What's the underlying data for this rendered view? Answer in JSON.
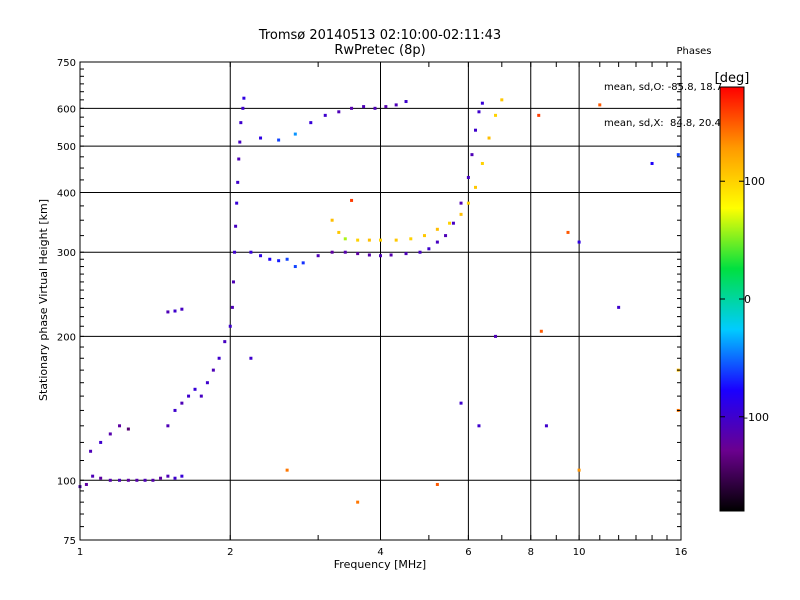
{
  "header": {
    "title_line1": "Tromsø 20140513 02:10:00-02:11:43",
    "title_line2": "RwPretec (8p)"
  },
  "phases": {
    "heading": "Phases",
    "line_o": "mean, sd,O: -85.8, 18.7",
    "line_x": "mean, sd,X:  84.8, 20.4"
  },
  "colorbar": {
    "unit": "[deg]",
    "range": [
      -180,
      180
    ],
    "tick_labels": [
      "100",
      "0",
      "-100"
    ],
    "tick_values": [
      100,
      0,
      -100
    ],
    "gradient": [
      "#000000",
      "#6b008f",
      "#1a00ff",
      "#00ccff",
      "#00e040",
      "#ffff00",
      "#ff9900",
      "#ff0000"
    ]
  },
  "chart_data": {
    "type": "scatter",
    "title": "Tromsø 20140513 02:10:00-02:11:43",
    "subtitle": "RwPretec (8p)",
    "xlabel": "Frequency [MHz]",
    "ylabel": "Stationary phase Virtual Height [km]",
    "xscale": "log",
    "yscale": "log",
    "xlim": [
      1,
      16
    ],
    "ylim": [
      75,
      750
    ],
    "x_ticks": [
      1,
      2,
      4,
      6,
      8,
      10,
      16
    ],
    "x_tick_labels": [
      "1",
      "2",
      "4",
      "6",
      "8",
      "10",
      "16"
    ],
    "y_ticks": [
      75,
      100,
      200,
      300,
      400,
      500,
      600,
      750
    ],
    "y_tick_labels": [
      "75",
      "100",
      "200",
      "300",
      "400",
      "500",
      "600",
      "750"
    ],
    "grid": true,
    "color_encoding": "phase_deg",
    "series": [
      {
        "points": [
          [
            1.0,
            97,
            -110
          ],
          [
            1.03,
            98,
            -120
          ],
          [
            1.06,
            102,
            -110
          ],
          [
            1.1,
            101,
            -120
          ],
          [
            1.15,
            100,
            -115
          ],
          [
            1.2,
            100,
            -110
          ],
          [
            1.25,
            100,
            -120
          ],
          [
            1.3,
            100,
            -115
          ],
          [
            1.35,
            100,
            -110
          ],
          [
            1.4,
            100,
            -115
          ],
          [
            1.45,
            101,
            -120
          ],
          [
            1.5,
            102,
            -110
          ],
          [
            1.55,
            101,
            -100
          ],
          [
            1.6,
            102,
            -95
          ],
          [
            1.05,
            115,
            -110
          ],
          [
            1.1,
            120,
            -100
          ],
          [
            1.15,
            125,
            -115
          ],
          [
            1.2,
            130,
            -120
          ],
          [
            1.25,
            128,
            -140
          ],
          [
            1.5,
            130,
            -110
          ],
          [
            1.55,
            140,
            -100
          ],
          [
            1.6,
            145,
            -110
          ],
          [
            1.65,
            150,
            -100
          ],
          [
            1.7,
            155,
            -95
          ],
          [
            1.75,
            150,
            -105
          ],
          [
            1.8,
            160,
            -100
          ],
          [
            1.85,
            170,
            -110
          ],
          [
            1.9,
            180,
            -100
          ],
          [
            1.95,
            195,
            -105
          ],
          [
            2.0,
            210,
            -100
          ],
          [
            2.02,
            230,
            -110
          ],
          [
            1.5,
            225,
            -110
          ],
          [
            1.55,
            226,
            -100
          ],
          [
            1.6,
            228,
            -105
          ],
          [
            2.03,
            260,
            -110
          ],
          [
            2.04,
            300,
            -100
          ],
          [
            2.05,
            340,
            -105
          ],
          [
            2.06,
            380,
            -95
          ],
          [
            2.07,
            420,
            -100
          ],
          [
            2.08,
            470,
            -110
          ],
          [
            2.09,
            510,
            -105
          ],
          [
            2.1,
            560,
            -100
          ],
          [
            2.12,
            600,
            -100
          ],
          [
            2.13,
            630,
            -90
          ],
          [
            2.2,
            300,
            -95
          ],
          [
            2.3,
            295,
            -90
          ],
          [
            2.4,
            290,
            -80
          ],
          [
            2.5,
            288,
            -70
          ],
          [
            2.6,
            290,
            -60
          ],
          [
            2.7,
            280,
            -60
          ],
          [
            2.8,
            285,
            -65
          ],
          [
            3.0,
            295,
            -110
          ],
          [
            3.2,
            300,
            -120
          ],
          [
            3.4,
            300,
            -115
          ],
          [
            3.6,
            298,
            -120
          ],
          [
            3.8,
            296,
            -115
          ],
          [
            4.0,
            295,
            -110
          ],
          [
            4.2,
            296,
            -115
          ],
          [
            4.5,
            298,
            -110
          ],
          [
            4.8,
            300,
            -105
          ],
          [
            5.0,
            305,
            -100
          ],
          [
            5.2,
            315,
            -105
          ],
          [
            5.4,
            325,
            -110
          ],
          [
            5.6,
            345,
            -105
          ],
          [
            5.8,
            380,
            -110
          ],
          [
            6.0,
            430,
            -105
          ],
          [
            6.1,
            480,
            -110
          ],
          [
            6.2,
            540,
            -100
          ],
          [
            6.3,
            590,
            -100
          ],
          [
            6.4,
            615,
            -95
          ],
          [
            2.3,
            520,
            -90
          ],
          [
            2.5,
            515,
            -60
          ],
          [
            2.7,
            530,
            -40
          ],
          [
            2.9,
            560,
            -95
          ],
          [
            3.1,
            580,
            -100
          ],
          [
            3.3,
            590,
            -110
          ],
          [
            3.5,
            600,
            -115
          ],
          [
            3.7,
            605,
            -110
          ],
          [
            3.9,
            600,
            -110
          ],
          [
            4.1,
            605,
            -115
          ],
          [
            4.3,
            610,
            -110
          ],
          [
            4.5,
            620,
            -100
          ],
          [
            3.2,
            350,
            110
          ],
          [
            3.3,
            330,
            105
          ],
          [
            3.4,
            320,
            60
          ],
          [
            3.6,
            318,
            100
          ],
          [
            3.8,
            318,
            110
          ],
          [
            4.0,
            318,
            100
          ],
          [
            4.3,
            318,
            105
          ],
          [
            4.6,
            320,
            100
          ],
          [
            4.9,
            325,
            105
          ],
          [
            5.2,
            335,
            110
          ],
          [
            5.5,
            345,
            100
          ],
          [
            5.8,
            360,
            110
          ],
          [
            6.0,
            380,
            100
          ],
          [
            6.2,
            410,
            105
          ],
          [
            6.4,
            460,
            100
          ],
          [
            6.6,
            520,
            110
          ],
          [
            6.8,
            580,
            100
          ],
          [
            7.0,
            625,
            105
          ],
          [
            2.2,
            180,
            -100
          ],
          [
            2.6,
            105,
            140
          ],
          [
            3.6,
            90,
            140
          ],
          [
            5.2,
            98,
            150
          ],
          [
            6.3,
            130,
            -100
          ],
          [
            6.8,
            200,
            -110
          ],
          [
            8.4,
            205,
            150
          ],
          [
            8.6,
            130,
            -100
          ],
          [
            10.0,
            315,
            -90
          ],
          [
            10.0,
            105,
            130
          ],
          [
            12.0,
            230,
            -100
          ],
          [
            14.0,
            460,
            -80
          ],
          [
            15.8,
            480,
            -60
          ],
          [
            15.8,
            170,
            110
          ],
          [
            15.8,
            140,
            140
          ],
          [
            8.3,
            580,
            160
          ],
          [
            11.0,
            610,
            150
          ],
          [
            3.5,
            385,
            160
          ],
          [
            5.8,
            145,
            -100
          ],
          [
            9.5,
            330,
            150
          ]
        ]
      }
    ]
  }
}
